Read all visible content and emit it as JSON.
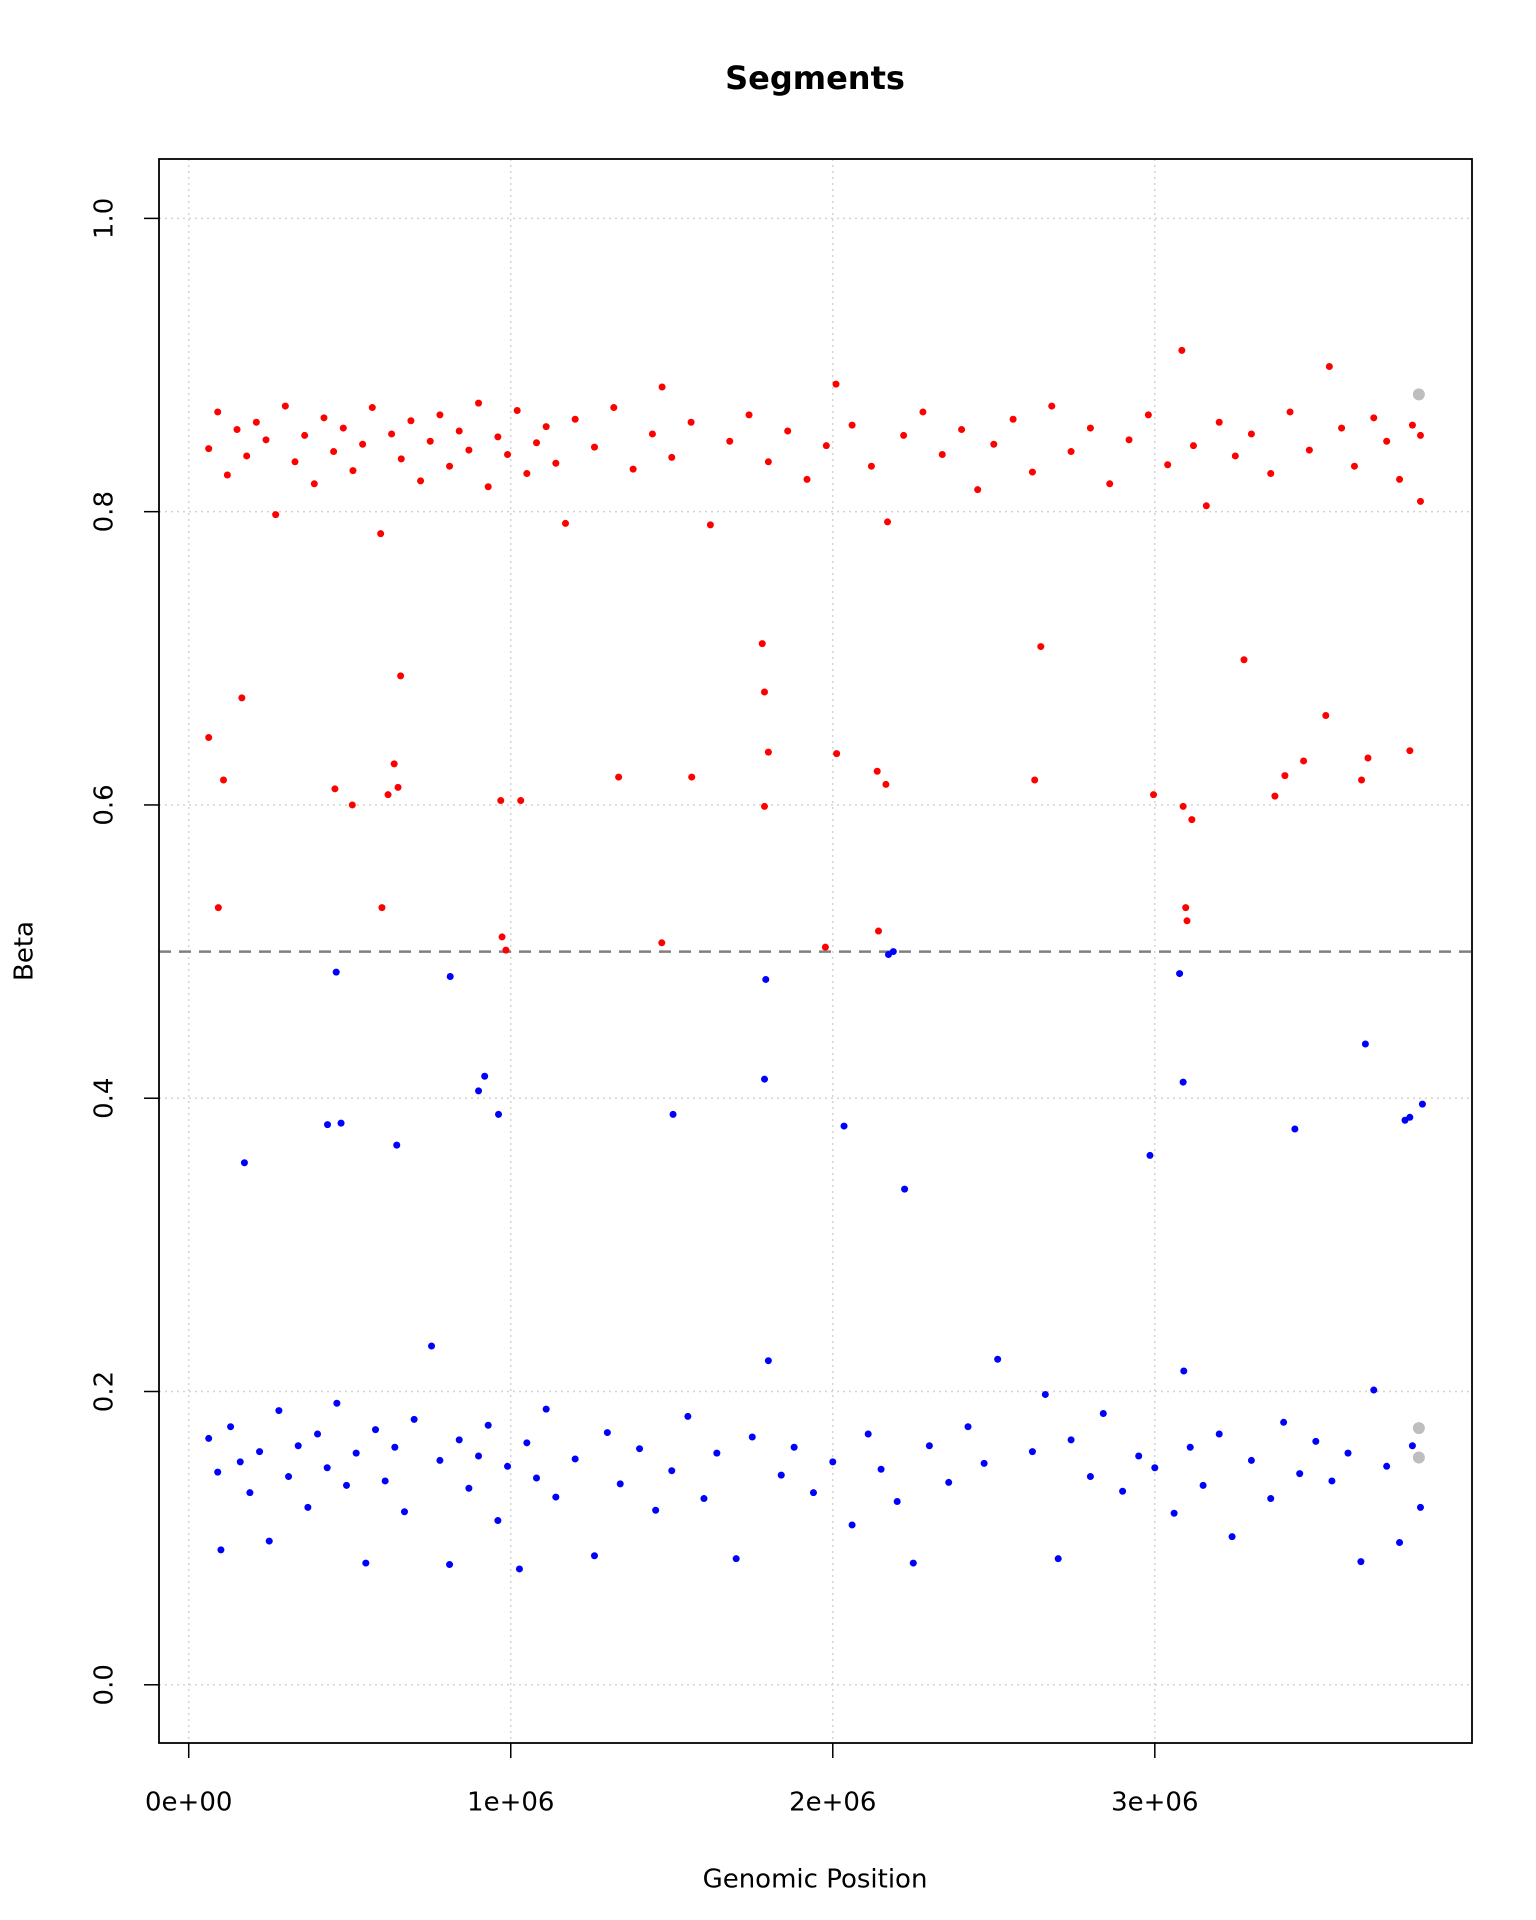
{
  "chart_data": {
    "type": "scatter",
    "title": "Segments",
    "x_label": "Genomic Position",
    "y_label": "Beta",
    "xlim": [
      -92300,
      3985000
    ],
    "ylim": [
      -0.0397,
      1.0405
    ],
    "xticks": [
      {
        "value": 0,
        "label": "0e+00"
      },
      {
        "value": 1000000,
        "label": "1e+06"
      },
      {
        "value": 2000000,
        "label": "2e+06"
      },
      {
        "value": 3000000,
        "label": "3e+06"
      }
    ],
    "yticks": [
      {
        "value": 0,
        "label": "0.0"
      },
      0.2,
      0.4,
      0.6,
      0.8,
      {
        "value": 1,
        "label": "1.0"
      }
    ],
    "grid": true,
    "grid_color": "#d3d3d3",
    "reference_line": {
      "y": 0.5,
      "color": "#808080",
      "style": "dashed"
    },
    "series": [
      {
        "color": "#ff0000",
        "size": 3.5,
        "x": [
          62000,
          90000,
          120000,
          150000,
          180000,
          210000,
          240000,
          270000,
          300000,
          330000,
          360000,
          390000,
          420000,
          450000,
          480000,
          510000,
          540000,
          570000,
          596000,
          630000,
          660000,
          690000,
          720000,
          750000,
          780000,
          810000,
          840000,
          870000,
          900000,
          930000,
          960000,
          990000,
          1020000,
          1050000,
          1080000,
          1110000,
          1140000,
          1170000,
          1200000,
          1260000,
          1320000,
          1380000,
          1440000,
          1470000,
          1500000,
          1560000,
          1620000,
          1680000,
          1740000,
          1800000,
          1860000,
          1920000,
          1980000,
          2010000,
          2060000,
          2120000,
          2170000,
          2220000,
          2280000,
          2340000,
          2400000,
          2450000,
          2500000,
          2560000,
          2620000,
          2680000,
          2740000,
          2800000,
          2860000,
          2920000,
          2980000,
          3040000,
          3084000,
          3120000,
          3160000,
          3200000,
          3250000,
          3300000,
          3360000,
          3420000,
          3480000,
          3542000,
          3580000,
          3620000,
          3680000,
          3720000,
          3760000,
          3800000,
          3825000,
          3825000,
          62000,
          92000,
          108000,
          165000,
          454000,
          508000,
          600000,
          619000,
          638000,
          650000,
          658000,
          969000,
          973000,
          985000,
          1031000,
          1335000,
          1469000,
          1562000,
          1781000,
          1788000,
          1788000,
          1800000,
          1977000,
          2012000,
          2138000,
          2142000,
          2165000,
          2627000,
          2646000,
          2996000,
          3088000,
          3096000,
          3100000,
          3115000,
          3277000,
          3373000,
          3404000,
          3462000,
          3531000,
          3642000,
          3662000,
          3792000
        ],
        "values": [
          0.843,
          0.868,
          0.825,
          0.856,
          0.838,
          0.861,
          0.849,
          0.798,
          0.872,
          0.834,
          0.852,
          0.819,
          0.864,
          0.841,
          0.857,
          0.828,
          0.846,
          0.871,
          0.785,
          0.853,
          0.836,
          0.862,
          0.821,
          0.848,
          0.866,
          0.831,
          0.855,
          0.842,
          0.874,
          0.817,
          0.851,
          0.839,
          0.869,
          0.826,
          0.847,
          0.858,
          0.833,
          0.792,
          0.863,
          0.844,
          0.871,
          0.829,
          0.853,
          0.885,
          0.837,
          0.861,
          0.791,
          0.848,
          0.866,
          0.834,
          0.855,
          0.822,
          0.845,
          0.887,
          0.859,
          0.831,
          0.793,
          0.852,
          0.868,
          0.839,
          0.856,
          0.815,
          0.846,
          0.863,
          0.827,
          0.872,
          0.841,
          0.857,
          0.819,
          0.849,
          0.866,
          0.832,
          0.91,
          0.845,
          0.804,
          0.861,
          0.838,
          0.853,
          0.826,
          0.868,
          0.842,
          0.899,
          0.857,
          0.831,
          0.864,
          0.848,
          0.822,
          0.859,
          0.807,
          0.852,
          0.646,
          0.53,
          0.617,
          0.673,
          0.611,
          0.6,
          0.53,
          0.607,
          0.628,
          0.612,
          0.688,
          0.603,
          0.51,
          0.501,
          0.603,
          0.619,
          0.506,
          0.619,
          0.71,
          0.677,
          0.599,
          0.636,
          0.503,
          0.635,
          0.623,
          0.514,
          0.614,
          0.617,
          0.708,
          0.607,
          0.599,
          0.53,
          0.521,
          0.59,
          0.699,
          0.606,
          0.62,
          0.63,
          0.661,
          0.617,
          0.632,
          0.637
        ]
      },
      {
        "color": "#0000ff",
        "size": 3.5,
        "x": [
          62000,
          90000,
          100000,
          130000,
          160000,
          190000,
          220000,
          250000,
          280000,
          310000,
          340000,
          370000,
          400000,
          430000,
          460000,
          490000,
          520000,
          550000,
          580000,
          610000,
          640000,
          670000,
          700000,
          754000,
          780000,
          810000,
          840000,
          870000,
          900000,
          930000,
          960000,
          990000,
          1027000,
          1050000,
          1080000,
          1110000,
          1140000,
          1200000,
          1260000,
          1300000,
          1340000,
          1400000,
          1450000,
          1500000,
          1550000,
          1600000,
          1640000,
          1700000,
          1750000,
          1800000,
          1840000,
          1880000,
          1940000,
          2000000,
          2060000,
          2110000,
          2150000,
          2200000,
          2250000,
          2300000,
          2360000,
          2420000,
          2470000,
          2512000,
          2620000,
          2660000,
          2700000,
          2740000,
          2800000,
          2840000,
          2900000,
          2950000,
          3000000,
          3060000,
          3090000,
          3110000,
          3150000,
          3200000,
          3240000,
          3300000,
          3360000,
          3400000,
          3450000,
          3500000,
          3550000,
          3600000,
          3640000,
          3680000,
          3720000,
          3760000,
          3800000,
          3825000,
          173000,
          431000,
          458000,
          473000,
          646000,
          812000,
          900000,
          919000,
          962000,
          1792000,
          1788000,
          1504000,
          2035000,
          2173000,
          2188000,
          2223000,
          2985000,
          3077000,
          3088000,
          3435000,
          3654000,
          3777000,
          3792000,
          3831000
        ],
        "values": [
          0.168,
          0.145,
          0.092,
          0.176,
          0.152,
          0.131,
          0.159,
          0.098,
          0.187,
          0.142,
          0.163,
          0.121,
          0.171,
          0.148,
          0.192,
          0.136,
          0.158,
          0.083,
          0.174,
          0.139,
          0.162,
          0.118,
          0.181,
          0.231,
          0.153,
          0.082,
          0.167,
          0.134,
          0.156,
          0.177,
          0.112,
          0.149,
          0.079,
          0.165,
          0.141,
          0.188,
          0.128,
          0.154,
          0.088,
          0.172,
          0.137,
          0.161,
          0.119,
          0.146,
          0.183,
          0.127,
          0.158,
          0.086,
          0.169,
          0.221,
          0.143,
          0.162,
          0.131,
          0.152,
          0.109,
          0.171,
          0.147,
          0.125,
          0.083,
          0.163,
          0.138,
          0.176,
          0.151,
          0.222,
          0.159,
          0.198,
          0.086,
          0.167,
          0.142,
          0.185,
          0.132,
          0.156,
          0.148,
          0.117,
          0.214,
          0.162,
          0.136,
          0.171,
          0.101,
          0.153,
          0.127,
          0.179,
          0.144,
          0.166,
          0.139,
          0.158,
          0.084,
          0.201,
          0.149,
          0.097,
          0.163,
          0.121,
          0.356,
          0.382,
          0.486,
          0.383,
          0.368,
          0.483,
          0.405,
          0.415,
          0.389,
          0.481,
          0.413,
          0.389,
          0.381,
          0.498,
          0.5,
          0.338,
          0.361,
          0.485,
          0.411,
          0.379,
          0.437,
          0.385,
          0.387,
          0.396
        ]
      },
      {
        "color": "#bebebe",
        "size": 6,
        "x": [
          3820000,
          3820000,
          3820000
        ],
        "values": [
          0.88,
          0.175,
          0.155
        ]
      }
    ]
  }
}
